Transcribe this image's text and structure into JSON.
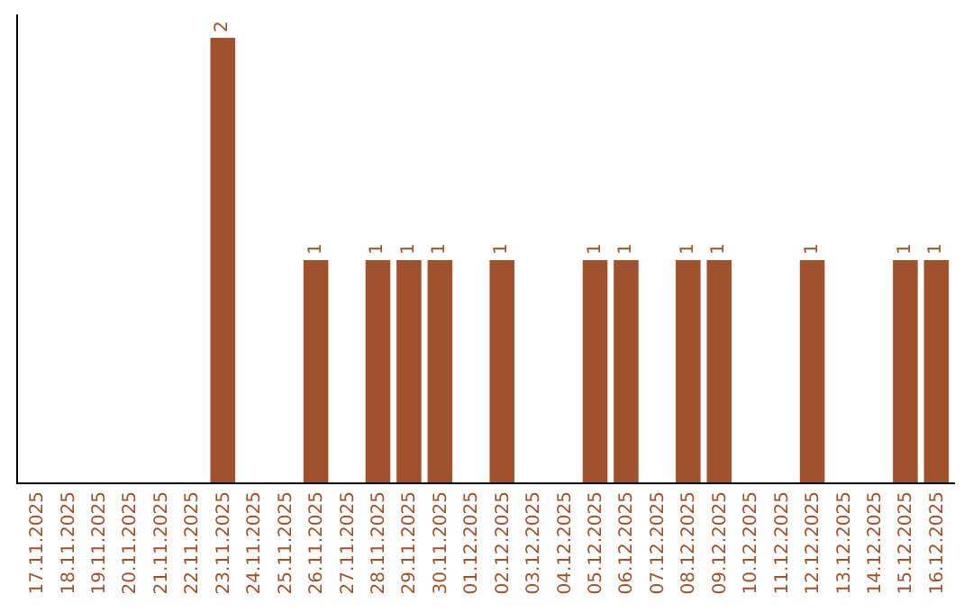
{
  "chart_data": {
    "type": "bar",
    "categories": [
      "17.11.2025",
      "18.11.2025",
      "19.11.2025",
      "20.11.2025",
      "21.11.2025",
      "22.11.2025",
      "23.11.2025",
      "24.11.2025",
      "25.11.2025",
      "26.11.2025",
      "27.11.2025",
      "28.11.2025",
      "29.11.2025",
      "30.11.2025",
      "01.12.2025",
      "02.12.2025",
      "03.12.2025",
      "04.12.2025",
      "05.12.2025",
      "06.12.2025",
      "07.12.2025",
      "08.12.2025",
      "09.12.2025",
      "10.12.2025",
      "11.12.2025",
      "12.12.2025",
      "13.12.2025",
      "14.12.2025",
      "15.12.2025",
      "16.12.2025"
    ],
    "values": [
      0,
      0,
      0,
      0,
      0,
      0,
      2,
      0,
      0,
      1,
      0,
      1,
      1,
      1,
      0,
      1,
      0,
      0,
      1,
      1,
      0,
      1,
      1,
      0,
      0,
      1,
      0,
      0,
      1,
      1
    ],
    "value_labels": [
      null,
      null,
      null,
      null,
      null,
      null,
      "2",
      null,
      null,
      "1",
      null,
      "1",
      "1",
      "1",
      null,
      "1",
      null,
      null,
      "1",
      "1",
      null,
      "1",
      "1",
      null,
      null,
      "1",
      null,
      null,
      "1",
      "1"
    ],
    "color": "#a0522d",
    "tick_labels": "x"
  }
}
